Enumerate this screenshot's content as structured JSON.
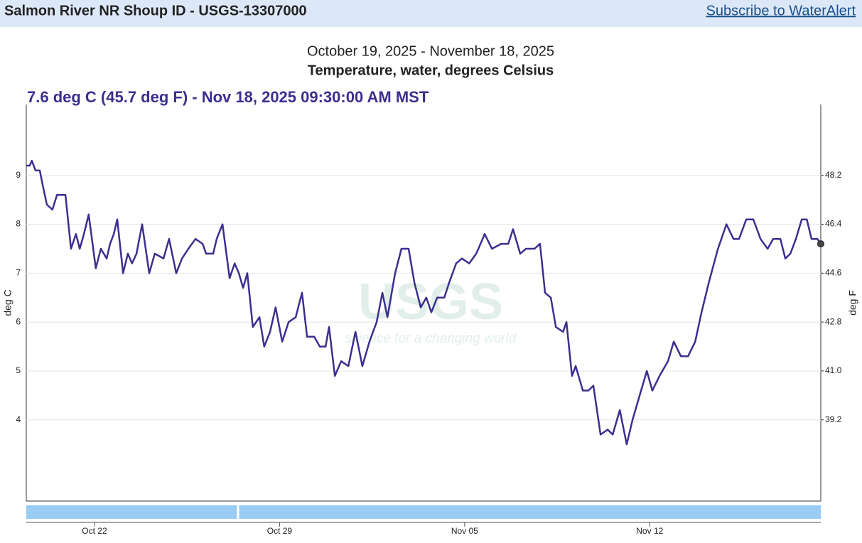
{
  "header": {
    "title": "Salmon River NR Shoup ID - USGS-13307000",
    "link": "Subscribe to WaterAlert"
  },
  "watermark": {
    "logo": "USGS",
    "tagline": "science for a changing world"
  },
  "chart_data": {
    "type": "line",
    "subtitle": "October 19, 2025 - November 18, 2025",
    "title": "Temperature, water, degrees Celsius",
    "current_label": "7.6 deg C (45.7 deg F) - Nov 18, 2025 09:30:00 AM MST",
    "ylabel": "deg C",
    "y2label": "deg F",
    "color": "#3b2f8f",
    "x": [
      0.42,
      0.55,
      0.63,
      0.77,
      0.93,
      1.04,
      1.2,
      1.41,
      1.58,
      1.9,
      2.11,
      2.3,
      2.44,
      2.6,
      2.78,
      3.05,
      3.24,
      3.46,
      3.59,
      3.73,
      3.86,
      4.08,
      4.26,
      4.42,
      4.59,
      4.8,
      5.07,
      5.28,
      5.61,
      5.82,
      6.09,
      6.31,
      6.55,
      6.82,
      7.09,
      7.22,
      7.49,
      7.62,
      7.84,
      8.11,
      8.3,
      8.46,
      8.62,
      8.78,
      8.99,
      9.24,
      9.42,
      9.64,
      9.85,
      10.1,
      10.34,
      10.61,
      10.85,
      11.04,
      11.31,
      11.52,
      11.74,
      11.87,
      12.09,
      12.33,
      12.6,
      12.87,
      13.13,
      13.4,
      13.67,
      13.89,
      14.08,
      14.37,
      14.61,
      14.88,
      15.1,
      15.34,
      15.55,
      15.74,
      15.96,
      16.23,
      16.41,
      16.68,
      16.9,
      17.17,
      17.44,
      17.76,
      18.03,
      18.38,
      18.65,
      18.83,
      19.1,
      19.32,
      19.64,
      19.85,
      20.04,
      20.26,
      20.45,
      20.72,
      20.85,
      21.06,
      21.2,
      21.47,
      21.68,
      21.87,
      22.14,
      22.41,
      22.6,
      22.87,
      23.13,
      23.35,
      23.62,
      23.89,
      24.1,
      24.37,
      24.69,
      24.91,
      25.18,
      25.45,
      25.72,
      25.96,
      26.23,
      26.58,
      26.9,
      27.17,
      27.38,
      27.65,
      27.92,
      28.19,
      28.46,
      28.67,
      28.94,
      29.13,
      29.32,
      29.53,
      29.75,
      29.94,
      30.12,
      30.34,
      30.47
    ],
    "values": [
      9.2,
      9.2,
      9.3,
      9.1,
      9.1,
      8.8,
      8.4,
      8.3,
      8.6,
      8.6,
      7.5,
      7.8,
      7.5,
      7.8,
      8.2,
      7.1,
      7.5,
      7.3,
      7.6,
      7.8,
      8.1,
      7.0,
      7.4,
      7.2,
      7.4,
      8.0,
      7.0,
      7.4,
      7.3,
      7.7,
      7.0,
      7.3,
      7.5,
      7.7,
      7.6,
      7.4,
      7.4,
      7.7,
      8.0,
      6.9,
      7.2,
      7.0,
      6.7,
      7.0,
      5.9,
      6.1,
      5.5,
      5.8,
      6.3,
      5.6,
      6.0,
      6.1,
      6.6,
      5.7,
      5.7,
      5.5,
      5.5,
      5.9,
      4.9,
      5.2,
      5.1,
      5.8,
      5.1,
      5.6,
      6.0,
      6.6,
      6.1,
      7.0,
      7.5,
      7.5,
      6.8,
      6.3,
      6.5,
      6.2,
      6.5,
      6.5,
      6.8,
      7.2,
      7.3,
      7.2,
      7.4,
      7.8,
      7.5,
      7.6,
      7.6,
      7.9,
      7.4,
      7.5,
      7.5,
      7.6,
      6.6,
      6.5,
      5.9,
      5.8,
      6.0,
      4.9,
      5.1,
      4.6,
      4.6,
      4.7,
      3.7,
      3.8,
      3.7,
      4.2,
      3.5,
      4.0,
      4.5,
      5.0,
      4.6,
      4.9,
      5.2,
      5.6,
      5.3,
      5.3,
      5.6,
      6.2,
      6.8,
      7.5,
      8.0,
      7.7,
      7.7,
      8.1,
      8.1,
      7.7,
      7.5,
      7.7,
      7.7,
      7.3,
      7.4,
      7.7,
      8.1,
      8.1,
      7.7,
      7.7,
      7.6
    ],
    "xlim": [
      0.42,
      30.47
    ],
    "xticks": [
      {
        "value": 3,
        "label": "Oct 22"
      },
      {
        "value": 10,
        "label": "Oct 29"
      },
      {
        "value": 17,
        "label": "Nov 05"
      },
      {
        "value": 24,
        "label": "Nov 12"
      }
    ],
    "ylim": [
      2.34,
      10.45
    ],
    "yticks": [
      4,
      5,
      6,
      7,
      8,
      9
    ],
    "y2lim": [
      36.21,
      50.81
    ],
    "y2ticks": [
      39.2,
      {
        "value": 41,
        "label": "41.0"
      },
      42.8,
      44.6,
      46.4,
      48.2
    ],
    "grid": true
  }
}
